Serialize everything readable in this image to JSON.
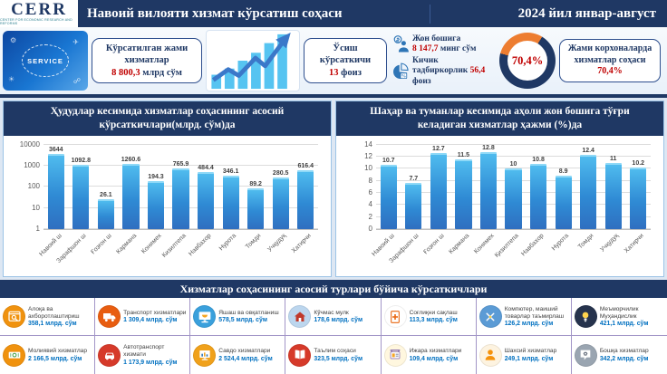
{
  "header": {
    "logo_text": "CERR",
    "logo_sub": "CENTER FOR ECONOMIC RESEARCH AND REFORMS",
    "title": "Навоий вилояти хизмат кўрсатиш соҳаси",
    "period": "2024 йил январ-август"
  },
  "colors": {
    "navy": "#1f3864",
    "red": "#c00000",
    "orange_donut": "#ed7d31",
    "bar_blue": "#2f8ad4",
    "value_blue": "#0070c0"
  },
  "stats": {
    "service_image_label": "SERVICE",
    "total": {
      "label": "Кўрсатилган жами хизматлар",
      "value": "8 800,3",
      "unit": "млрд сўм"
    },
    "growth": {
      "label": "Ўсиш кўрсаткичи",
      "value": "13",
      "unit": "фоиз"
    },
    "per_capita": {
      "label": "Жон бошига",
      "value": "8 147,7",
      "unit": "минг сўм"
    },
    "small_business": {
      "label": "Кичик тадбиркорлик",
      "value": "56,4",
      "unit": "фоиз"
    },
    "donut": {
      "value_label": "70,4%",
      "percent": 70.4
    },
    "enterprises": {
      "label": "Жами корхоналарда хизматлар соҳаси",
      "value": "70,4%"
    }
  },
  "chart_data": [
    {
      "type": "bar",
      "title": "Ҳудудлар кесимида хизматлар соҳасининг асосий кўрсаткичлари(млрд. сўм)да",
      "categories": [
        "Навоий ш",
        "Зарафшон ш",
        "Ғозғон ш",
        "Кармана",
        "Конимех",
        "Кизилтепа",
        "Навбахор",
        "Нурота",
        "Томди",
        "Учқудуқ",
        "Хатирчи"
      ],
      "values": [
        3644,
        1092.8,
        26.1,
        1260.6,
        194.3,
        765.9,
        484.4,
        346.1,
        89.2,
        280.5,
        616.4
      ],
      "value_labels": [
        "3644",
        "1092.8",
        "26.1",
        "1260.6",
        "194.3",
        "765.9",
        "484.4",
        "346.1",
        "89.2",
        "280.5",
        "616.4"
      ],
      "xlabel": "",
      "ylabel": "",
      "yscale": "log",
      "yticks": [
        10000,
        1000,
        100,
        10,
        1
      ],
      "ylim": [
        1,
        10000
      ],
      "grid": true,
      "legend": false
    },
    {
      "type": "bar",
      "title": "Шаҳар ва туманлар кесимида аҳоли жон бошига тўғри келадиган хизматлар ҳажми (%)да",
      "categories": [
        "Навоий ш",
        "Зарафшон ш",
        "Ғозғон ш",
        "Кармана",
        "Конимех",
        "Қизилтепа",
        "Навбахор",
        "Нурота",
        "Томди",
        "Учқудуқ",
        "Хатирчи"
      ],
      "values": [
        10.7,
        7.7,
        12.7,
        11.5,
        12.8,
        10,
        10.8,
        8.9,
        12.4,
        11,
        10.2
      ],
      "value_labels": [
        "10.7",
        "7.7",
        "12.7",
        "11.5",
        "12.8",
        "10",
        "10.8",
        "8.9",
        "12.4",
        "11",
        "10.2"
      ],
      "xlabel": "",
      "ylabel": "",
      "yscale": "linear",
      "yticks": [
        14,
        12,
        10,
        8,
        6,
        4,
        2,
        0
      ],
      "ylim": [
        0,
        14
      ],
      "grid": true,
      "legend": false
    }
  ],
  "services": {
    "title": "Хизматлар соҳасининг асосий турлари бўйича кўрсаткичлари",
    "rows": [
      [
        {
          "icon": "communication-icon",
          "color": "#f0920e",
          "label": "Алоқа ва ахборотлаштириш",
          "value": "358,1 млрд. сўм"
        },
        {
          "icon": "truck-icon",
          "color": "#e85d10",
          "label": "Транспорт хизматлари",
          "value": "1 309,4 млрд. сўм"
        },
        {
          "icon": "food-icon",
          "color": "#3aa0dc",
          "label": "Яшаш ва овқатланиш",
          "value": "578,5 млрд. сўм"
        },
        {
          "icon": "house-icon",
          "color": "#bcd6ee",
          "label": "Кўчмас мулк",
          "value": "178,6 млрд. сўм"
        },
        {
          "icon": "health-icon",
          "color": "#ffffff",
          "label": "Соғлиқни сақлаш",
          "value": "113,3 млрд. сўм"
        },
        {
          "icon": "tools-icon",
          "color": "#5b9bd5",
          "label": "Компютер, маиший товарлар таъмирлаш",
          "value": "126,2 млрд. сўм"
        },
        {
          "icon": "idea-icon",
          "color": "#26334d",
          "label": "Меъморчилик Муҳандислик",
          "value": "421,1 млрд. сўм"
        }
      ],
      [
        {
          "icon": "finance-icon",
          "color": "#f0920e",
          "label": "Молиявий хизматлар",
          "value": "2 166,5 млрд. сўм"
        },
        {
          "icon": "car-icon",
          "color": "#d63a2a",
          "label": "Автотранспорт хизмати",
          "value": "1 173,9 млрд. сўм"
        },
        {
          "icon": "trade-icon",
          "color": "#f0a11b",
          "label": "Савдо хизматлари",
          "value": "2 524,4 млрд. сўм"
        },
        {
          "icon": "education-icon",
          "color": "#d63a2a",
          "label": "Таълим соҳаси",
          "value": "323,5 млрд. сўм"
        },
        {
          "icon": "rent-icon",
          "color": "#fff7df",
          "label": "Ижара хизматлари",
          "value": "109,4 млрд. сўм"
        },
        {
          "icon": "person-icon",
          "color": "#fdf3e0",
          "label": "Шахсий хизматлар",
          "value": "249,1 млрд. сўм"
        },
        {
          "icon": "other-icon",
          "color": "#9aa5b1",
          "label": "Бошқа хизматлар",
          "value": "342,2 млрд. сўм"
        }
      ]
    ]
  }
}
